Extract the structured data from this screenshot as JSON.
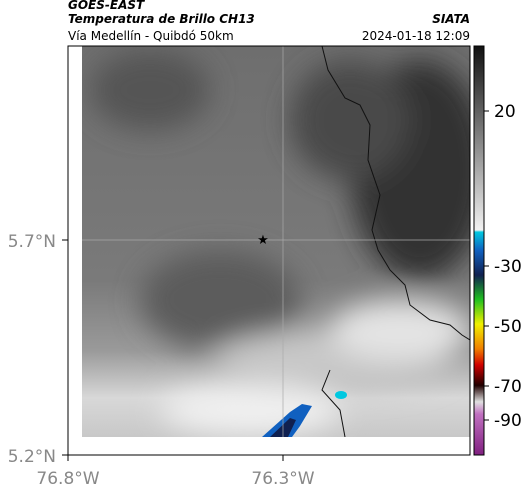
{
  "header": {
    "source": "GOES-EAST",
    "title": "Temperatura de Brillo CH13",
    "brand": "SIATA",
    "subtitle": "Vía Medellín - Quibdó 50km",
    "datetime": "2024-01-18 12:09"
  },
  "axes": {
    "lat_labels": [
      "5.7°N",
      "5.2°N"
    ],
    "lon_labels": [
      "76.8°W",
      "76.3°W"
    ]
  },
  "colorbar": {
    "labels": [
      "20",
      "-30",
      "-50",
      "-70",
      "-90"
    ]
  }
}
